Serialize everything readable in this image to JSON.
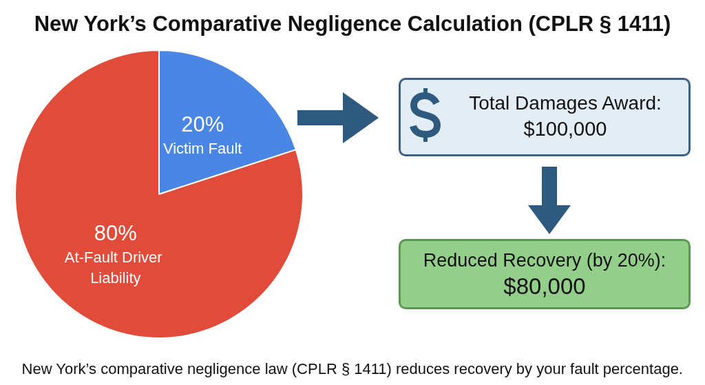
{
  "chart_data": {
    "type": "pie",
    "title": "New York’s Comparative Negligence Calculation (CPLR § 1411)",
    "categories": [
      "Victim Fault",
      "At-Fault Driver Liability"
    ],
    "values": [
      20,
      80
    ],
    "colors": [
      "#4a86e3",
      "#e04b3a"
    ],
    "value_labels": [
      "20%",
      "80%"
    ],
    "annotations": [
      "Total Damages Award:",
      "$100,000",
      "Reduced Recovery (by 20%):",
      "$80,000",
      "New York’s comparative negligence law (CPLR § 1411) reduces recovery by your fault percentage."
    ]
  }
}
